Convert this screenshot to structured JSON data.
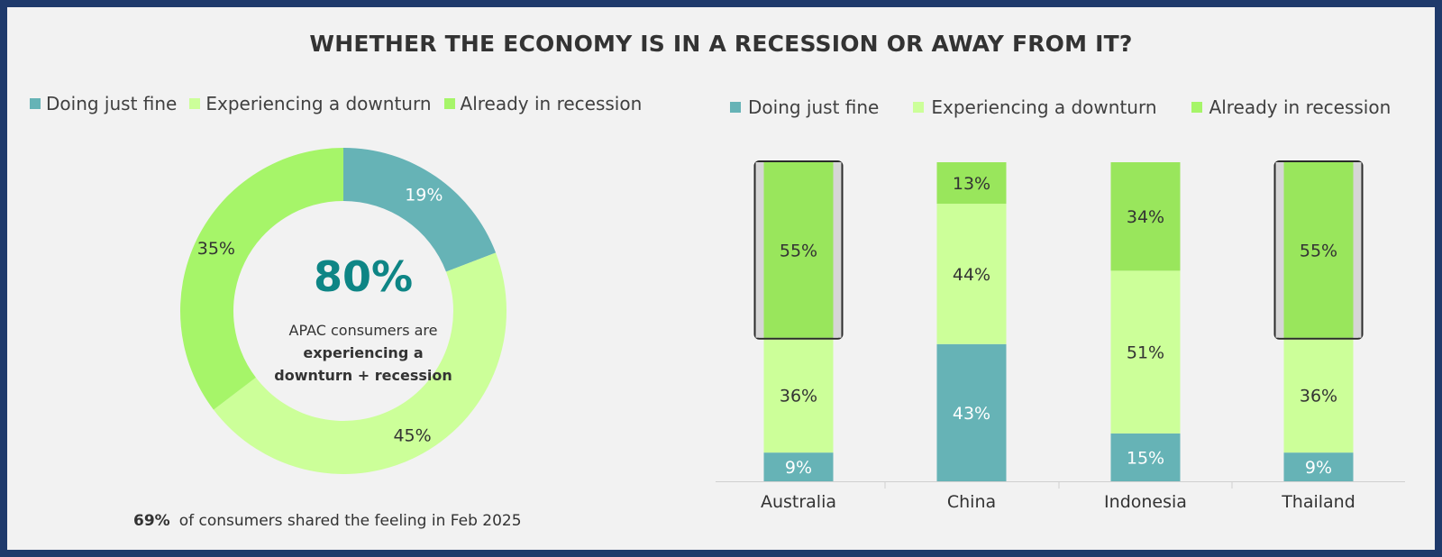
{
  "title": "WHETHER THE ECONOMY IS IN A RECESSION OR AWAY FROM IT?",
  "colors": {
    "doing_fine": "#66b3b6",
    "downturn": "#ccff99",
    "recession": "#99e65c",
    "recession_donut": "#a6f569",
    "accent": "#0e8585"
  },
  "legend": [
    {
      "label": "Doing just fine",
      "color": "#66b3b6"
    },
    {
      "label": "Experiencing a downturn",
      "color": "#ccff99"
    },
    {
      "label": "Already in recession",
      "color": "#a6f569"
    }
  ],
  "donut": {
    "big_value": "80%",
    "line1": "APAC consumers are",
    "line2": "experiencing a",
    "line3": "downturn + recession"
  },
  "footnote": {
    "value": "69%",
    "text": "of consumers shared the feeling in Feb 2025"
  },
  "chart_data": [
    {
      "type": "pie",
      "title": "",
      "labels": [
        "Doing just fine",
        "Experiencing a downturn",
        "Already in recession"
      ],
      "values": [
        19,
        45,
        35
      ],
      "value_labels": [
        "19%",
        "45%",
        "35%"
      ]
    },
    {
      "type": "bar",
      "stacked": true,
      "categories": [
        "Australia",
        "China",
        "Indonesia",
        "Thailand"
      ],
      "series": [
        {
          "name": "Doing just fine",
          "values": [
            9,
            43,
            15,
            9
          ]
        },
        {
          "name": "Experiencing a downturn",
          "values": [
            36,
            44,
            51,
            36
          ]
        },
        {
          "name": "Already in recession",
          "values": [
            55,
            13,
            34,
            55
          ]
        }
      ],
      "highlighted_categories": [
        "Australia",
        "Thailand"
      ],
      "legend": "top",
      "ylim": [
        0,
        100
      ]
    }
  ]
}
